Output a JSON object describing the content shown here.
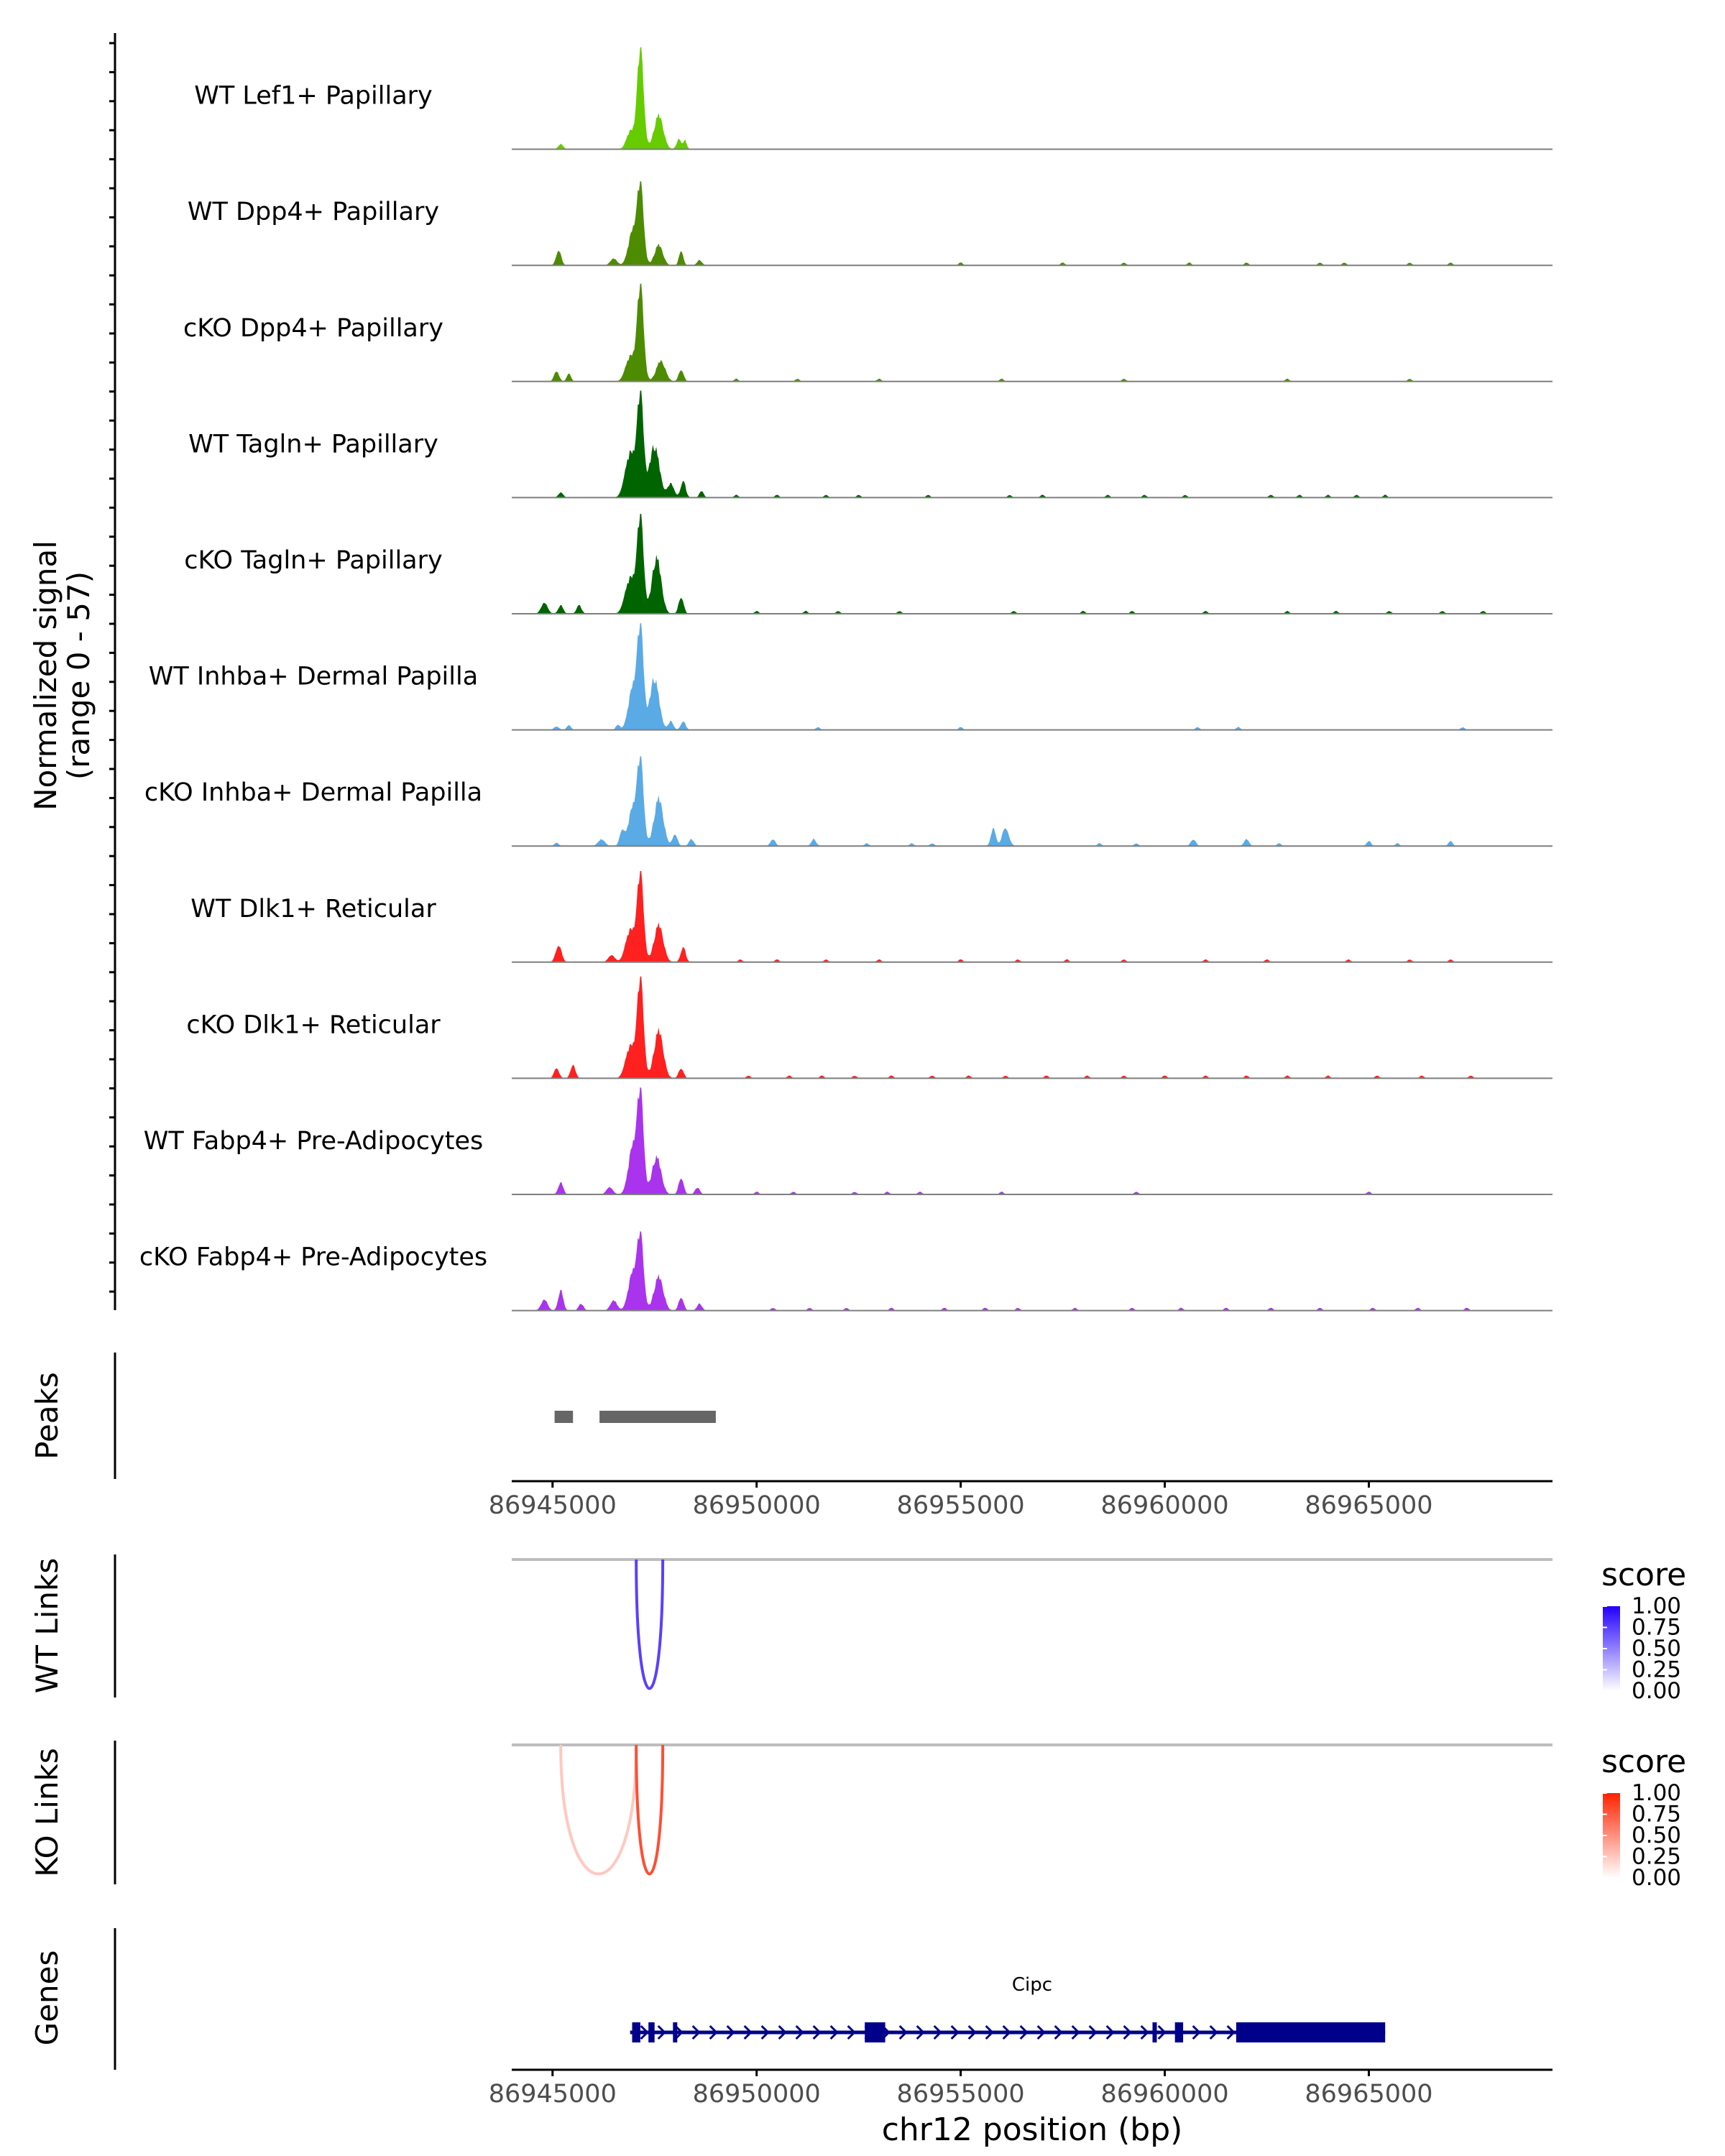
{
  "chart_data": {
    "type": "area",
    "title": "",
    "region": {
      "chrom": "chr12",
      "start": 86944000,
      "end": 86969500
    },
    "signal_ylabel": [
      "Normalized signal",
      "(range 0 - 57)"
    ],
    "signal_range": [
      0,
      57
    ],
    "tracks": [
      {
        "name": "WT Lef1+ Papillary",
        "color": "#66cc00",
        "sig_scale": 1.0,
        "peaks": [
          [
            86945200,
            3,
            60
          ],
          [
            86947150,
            57,
            80
          ],
          [
            86947600,
            20,
            110
          ],
          [
            86946900,
            10,
            90
          ],
          [
            86948100,
            6,
            60
          ],
          [
            86948250,
            5,
            40
          ]
        ],
        "bg": []
      },
      {
        "name": "WT Dpp4+ Papillary",
        "color": "#4d8b00",
        "sig_scale": 1.0,
        "peaks": [
          [
            86945150,
            9,
            60
          ],
          [
            86946500,
            4,
            80
          ],
          [
            86947150,
            45,
            80
          ],
          [
            86946950,
            18,
            100
          ],
          [
            86947600,
            12,
            100
          ],
          [
            86948150,
            9,
            50
          ],
          [
            86948600,
            3,
            60
          ]
        ],
        "bg": [
          86955000,
          86957500,
          86959000,
          86960600,
          86962000,
          86963800,
          86964400,
          86966000,
          86967000
        ]
      },
      {
        "name": "cKO Dpp4+ Papillary",
        "color": "#4d8b00",
        "sig_scale": 1.0,
        "peaks": [
          [
            86945100,
            6,
            60
          ],
          [
            86945400,
            5,
            50
          ],
          [
            86947150,
            54,
            80
          ],
          [
            86946900,
            14,
            110
          ],
          [
            86947650,
            12,
            110
          ],
          [
            86948150,
            7,
            60
          ]
        ],
        "bg": [
          86949500,
          86951000,
          86953000,
          86956000,
          86959000,
          86963000,
          86966000
        ]
      },
      {
        "name": "WT Tagln+ Papillary",
        "color": "#006400",
        "sig_scale": 1.0,
        "peaks": [
          [
            86945200,
            3,
            60
          ],
          [
            86947150,
            57,
            80
          ],
          [
            86946900,
            25,
            120
          ],
          [
            86947500,
            30,
            120
          ],
          [
            86947900,
            8,
            80
          ],
          [
            86948200,
            10,
            60
          ],
          [
            86948650,
            4,
            50
          ]
        ],
        "bg": [
          86949500,
          86950500,
          86951700,
          86952500,
          86954200,
          86956200,
          86957000,
          86958600,
          86959500,
          86960500,
          86962600,
          86963300,
          86964000,
          86964700,
          86965400
        ]
      },
      {
        "name": "cKO Tagln+ Papillary",
        "color": "#006400",
        "sig_scale": 1.0,
        "peaks": [
          [
            86944800,
            6,
            80
          ],
          [
            86945200,
            5,
            60
          ],
          [
            86945650,
            5,
            60
          ],
          [
            86947150,
            54,
            80
          ],
          [
            86946900,
            20,
            120
          ],
          [
            86947550,
            33,
            110
          ],
          [
            86948150,
            10,
            60
          ]
        ],
        "bg": [
          86950000,
          86951200,
          86952000,
          86953500,
          86956300,
          86958000,
          86959200,
          86961000,
          86963000,
          86964200,
          86965500,
          86966800,
          86967800
        ]
      },
      {
        "name": "WT Inhba+ Dermal Papilla",
        "color": "#5aaae6",
        "sig_scale": 1.0,
        "peaks": [
          [
            86945100,
            2,
            60
          ],
          [
            86945400,
            3,
            50
          ],
          [
            86946600,
            3,
            50
          ],
          [
            86947150,
            57,
            80
          ],
          [
            86946950,
            22,
            100
          ],
          [
            86947500,
            30,
            110
          ],
          [
            86947900,
            5,
            60
          ],
          [
            86948200,
            5,
            60
          ]
        ],
        "bg": [
          86951500,
          86955000,
          86960800,
          86961800,
          86967300
        ]
      },
      {
        "name": "cKO Inhba+ Dermal Papilla",
        "color": "#5aaae6",
        "sig_scale": 1.0,
        "peaks": [
          [
            86945100,
            2,
            50
          ],
          [
            86946200,
            4,
            80
          ],
          [
            86946700,
            8,
            60
          ],
          [
            86947150,
            48,
            80
          ],
          [
            86946950,
            20,
            100
          ],
          [
            86947600,
            28,
            110
          ],
          [
            86948000,
            7,
            60
          ],
          [
            86948400,
            4,
            60
          ],
          [
            86950400,
            4,
            60
          ],
          [
            86951400,
            4,
            60
          ],
          [
            86955800,
            10,
            60
          ],
          [
            86956100,
            11,
            80
          ],
          [
            86962000,
            4,
            60
          ],
          [
            86960700,
            4,
            60
          ],
          [
            86965000,
            3,
            50
          ],
          [
            86967000,
            3,
            50
          ]
        ],
        "bg": [
          86952700,
          86953800,
          86954300,
          86958400,
          86959300,
          86962800,
          86965700
        ]
      },
      {
        "name": "WT Dlk1+ Reticular",
        "color": "#ff2020",
        "sig_scale": 1.0,
        "peaks": [
          [
            86945150,
            10,
            70
          ],
          [
            86946450,
            4,
            80
          ],
          [
            86947150,
            50,
            80
          ],
          [
            86946900,
            18,
            110
          ],
          [
            86947600,
            22,
            110
          ],
          [
            86948200,
            9,
            60
          ]
        ],
        "bg": [
          86949600,
          86950500,
          86951700,
          86953000,
          86955000,
          86956400,
          86957600,
          86959000,
          86961000,
          86962500,
          86964500,
          86966000,
          86967000
        ]
      },
      {
        "name": "cKO Dlk1+ Reticular",
        "color": "#ff2020",
        "sig_scale": 1.0,
        "peaks": [
          [
            86945100,
            6,
            60
          ],
          [
            86945500,
            8,
            60
          ],
          [
            86947150,
            56,
            80
          ],
          [
            86946900,
            18,
            110
          ],
          [
            86947600,
            28,
            110
          ],
          [
            86948150,
            6,
            60
          ]
        ],
        "bg": [
          86949800,
          86950800,
          86951600,
          86952400,
          86953300,
          86954300,
          86955200,
          86956100,
          86957100,
          86958100,
          86959000,
          86960000,
          86961000,
          86962000,
          86963000,
          86964000,
          86965200,
          86966300,
          86967500
        ]
      },
      {
        "name": "WT Fabp4+ Pre-Adipocytes",
        "color": "#aa33ee",
        "sig_scale": 1.0,
        "peaks": [
          [
            86945200,
            7,
            60
          ],
          [
            86946400,
            4,
            80
          ],
          [
            86947150,
            57,
            80
          ],
          [
            86946950,
            25,
            100
          ],
          [
            86947550,
            22,
            110
          ],
          [
            86948150,
            10,
            60
          ],
          [
            86948550,
            4,
            60
          ]
        ],
        "bg": [
          86950000,
          86950900,
          86952400,
          86953200,
          86954000,
          86956000,
          86959300,
          86965000
        ]
      },
      {
        "name": "cKO Fabp4+ Pre-Adipocytes",
        "color": "#aa33ee",
        "sig_scale": 1.0,
        "peaks": [
          [
            86944800,
            6,
            80
          ],
          [
            86945200,
            12,
            60
          ],
          [
            86945700,
            4,
            60
          ],
          [
            86946500,
            6,
            80
          ],
          [
            86947150,
            42,
            80
          ],
          [
            86946950,
            20,
            100
          ],
          [
            86947600,
            20,
            110
          ],
          [
            86948150,
            8,
            60
          ],
          [
            86948600,
            4,
            60
          ]
        ],
        "bg": [
          86950400,
          86951300,
          86952200,
          86953300,
          86954600,
          86955600,
          86956400,
          86957800,
          86959200,
          86960400,
          86961500,
          86962600,
          86963800,
          86965100,
          86966200,
          86967400
        ]
      }
    ],
    "peaks_track": {
      "label": "Peaks",
      "regions": [
        [
          86945050,
          86945500
        ],
        [
          86946150,
          86949000
        ]
      ],
      "color": "#666666"
    },
    "x_axis": {
      "ticks": [
        86945000,
        86950000,
        86955000,
        86960000,
        86965000
      ],
      "tick_labels": [
        "86945000",
        "86950000",
        "86955000",
        "86960000",
        "86965000"
      ]
    },
    "wt_links": {
      "label": "WT Links",
      "links": [
        {
          "start": 86947050,
          "end": 86947700,
          "score": 0.75
        }
      ],
      "legend": {
        "title": "score",
        "labels": [
          "1.00",
          "0.75",
          "0.50",
          "0.25",
          "0.00"
        ],
        "color_low": "#ffffff",
        "color_high": "#2200ff"
      }
    },
    "ko_links": {
      "label": "KO Links",
      "links": [
        {
          "start": 86945200,
          "end": 86947050,
          "score": 0.25
        },
        {
          "start": 86947050,
          "end": 86947700,
          "score": 0.8
        }
      ],
      "legend": {
        "title": "score",
        "labels": [
          "1.00",
          "0.75",
          "0.50",
          "0.25",
          "0.00"
        ],
        "color_low": "#ffffff",
        "color_high": "#ff2200"
      }
    },
    "genes": {
      "label": "Genes",
      "gene_name": "Cipc",
      "color": "#00008b",
      "span": [
        86946900,
        86965400
      ],
      "exons": [
        [
          86946950,
          86947150
        ],
        [
          86947350,
          86947500
        ],
        [
          86947950,
          86948050
        ],
        [
          86952650,
          86953150
        ],
        [
          86959700,
          86959800
        ],
        [
          86960250,
          86960450
        ],
        [
          86961750,
          86965400
        ]
      ]
    },
    "xlabel": "chr12 position (bp)"
  }
}
